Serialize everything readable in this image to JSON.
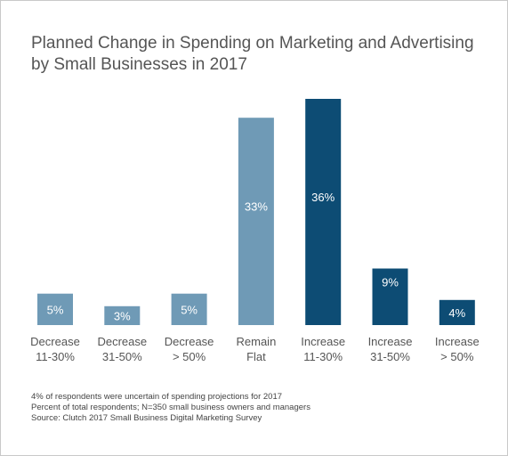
{
  "chart_data": {
    "type": "bar",
    "title_lines": [
      "Planned Change in Spending on Marketing and Advertising",
      "by Small Businesses in 2017"
    ],
    "categories": [
      [
        "Decrease",
        "11-30%"
      ],
      [
        "Decrease",
        "31-50%"
      ],
      [
        "Decrease",
        "> 50%"
      ],
      [
        "Remain",
        "Flat"
      ],
      [
        "Increase",
        "11-30%"
      ],
      [
        "Increase",
        "31-50%"
      ],
      [
        "Increase",
        "> 50%"
      ]
    ],
    "values": [
      5,
      3,
      5,
      33,
      36,
      9,
      4
    ],
    "value_labels": [
      "5%",
      "3%",
      "5%",
      "33%",
      "36%",
      "9%",
      "4%"
    ],
    "bar_colors": [
      "#6f9ab6",
      "#6f9ab6",
      "#6f9ab6",
      "#6f9ab6",
      "#0d4c74",
      "#0d4c74",
      "#0d4c74"
    ],
    "ylim": [
      0,
      36
    ],
    "xlabel": "",
    "ylabel": ""
  },
  "footnotes": [
    "4% of respondents were uncertain of spending projections for 2017",
    "Percent of total respondents; N=350 small business owners and managers",
    "Source: Clutch 2017 Small Business Digital Marketing Survey"
  ]
}
